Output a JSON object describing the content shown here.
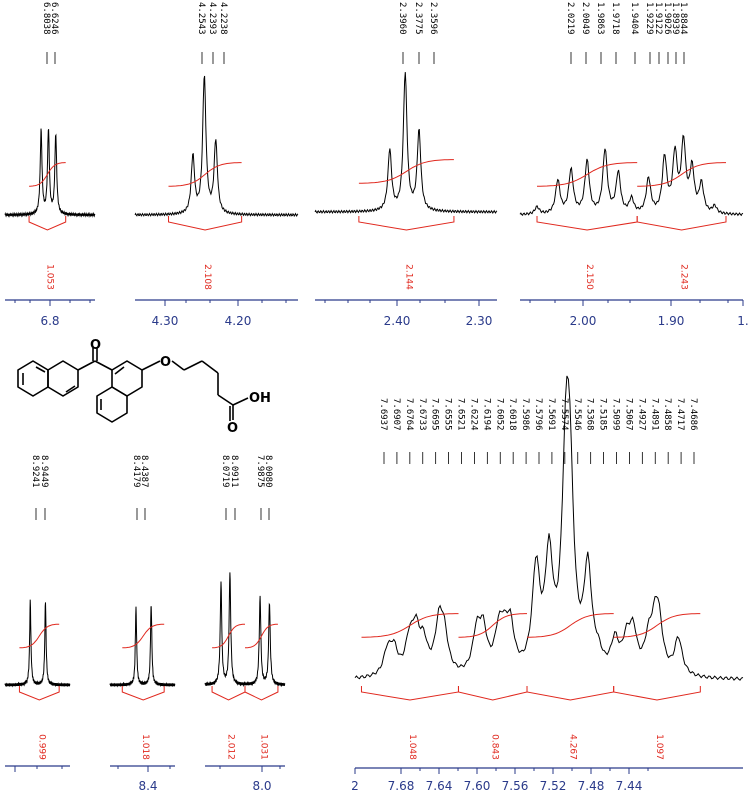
{
  "chart_data": [
    {
      "type": "line",
      "panel": "A",
      "x_axis_reversed": true,
      "xlim": [
        6.886,
        6.714
      ],
      "tick_labels": [
        "6.8"
      ],
      "peak_labels": [
        "6.8038",
        "6.6246"
      ],
      "peaks": [
        {
          "ppm": 6.817,
          "h": 0.58
        },
        {
          "ppm": 6.803,
          "h": 0.58
        },
        {
          "ppm": 6.789,
          "h": 0.55
        }
      ],
      "integrals": [
        {
          "from": 6.84,
          "to": 6.77,
          "value": "1.053"
        }
      ]
    },
    {
      "type": "line",
      "panel": "B",
      "x_axis_reversed": true,
      "xlim": [
        4.33,
        4.116
      ],
      "tick_labels": [
        "4.30",
        "4.20"
      ],
      "peak_labels": [
        "4.2543",
        "4.2393",
        "4.2238"
      ],
      "peaks": [
        {
          "ppm": 4.254,
          "h": 0.4
        },
        {
          "ppm": 4.239,
          "h": 0.95
        },
        {
          "ppm": 4.224,
          "h": 0.5
        }
      ],
      "integrals": [
        {
          "from": 4.286,
          "to": 4.19,
          "value": "2.108"
        }
      ]
    },
    {
      "type": "line",
      "panel": "C",
      "x_axis_reversed": true,
      "xlim": [
        2.488,
        2.264
      ],
      "tick_labels": [
        "2.40",
        "2.30"
      ],
      "peak_labels": [
        "2.3960",
        "2.3775",
        "2.3596"
      ],
      "peaks": [
        {
          "ppm": 2.396,
          "h": 0.42
        },
        {
          "ppm": 2.377,
          "h": 0.95
        },
        {
          "ppm": 2.36,
          "h": 0.55
        }
      ],
      "integrals": [
        {
          "from": 2.434,
          "to": 2.317,
          "value": "2.144"
        }
      ]
    },
    {
      "type": "line",
      "panel": "D",
      "x_axis_reversed": true,
      "xlim": [
        2.076,
        1.84
      ],
      "tick_labels": [
        "2.00",
        "1.90",
        "1."
      ],
      "peak_labels": [
        "2.0219",
        "2.0049",
        "1.9863",
        "1.9718",
        "1.9404",
        "1.9229",
        "1.9122",
        "1.9026",
        "1.8939",
        "1.8844"
      ],
      "peaks": [
        {
          "ppm": 2.058,
          "h": 0.05
        },
        {
          "ppm": 2.036,
          "h": 0.23
        },
        {
          "ppm": 2.022,
          "h": 0.3
        },
        {
          "ppm": 2.005,
          "h": 0.36
        },
        {
          "ppm": 1.986,
          "h": 0.44
        },
        {
          "ppm": 1.972,
          "h": 0.28
        },
        {
          "ppm": 1.958,
          "h": 0.1
        },
        {
          "ppm": 1.94,
          "h": 0.24
        },
        {
          "ppm": 1.923,
          "h": 0.38
        },
        {
          "ppm": 1.912,
          "h": 0.4
        },
        {
          "ppm": 1.903,
          "h": 0.48
        },
        {
          "ppm": 1.894,
          "h": 0.3
        },
        {
          "ppm": 1.884,
          "h": 0.2
        },
        {
          "ppm": 1.87,
          "h": 0.05
        }
      ],
      "integrals": [
        {
          "from": 2.058,
          "to": 1.952,
          "value": "2.150"
        },
        {
          "from": 1.952,
          "to": 1.858,
          "value": "2.243"
        }
      ]
    },
    {
      "type": "line",
      "panel": "E",
      "x_axis_reversed": true,
      "xlim": [
        8.98,
        7.95
      ],
      "tick_labels": [
        "8.4",
        "8.0"
      ],
      "peak_labels": [
        "8.9241",
        "8.9449",
        "8.4179",
        "8.4387",
        "8.0719",
        "8.0911",
        "7.9875",
        "8.0080"
      ],
      "peaks": [
        {
          "ppm": 8.945,
          "h": 0.48
        },
        {
          "ppm": 8.924,
          "h": 0.48
        },
        {
          "ppm": 8.439,
          "h": 0.44
        },
        {
          "ppm": 8.418,
          "h": 0.46
        },
        {
          "ppm": 8.091,
          "h": 0.58
        },
        {
          "ppm": 8.072,
          "h": 0.64
        },
        {
          "ppm": 8.008,
          "h": 0.5
        },
        {
          "ppm": 7.988,
          "h": 0.47
        }
      ],
      "integrals": [
        {
          "from": 8.96,
          "to": 8.905,
          "value": "0.999"
        },
        {
          "from": 8.458,
          "to": 8.4,
          "value": "1.018"
        },
        {
          "from": 8.11,
          "to": 8.04,
          "value": "2.012"
        },
        {
          "from": 8.04,
          "to": 7.97,
          "value": "1.031"
        }
      ]
    },
    {
      "type": "line",
      "panel": "F",
      "x_axis_reversed": true,
      "xlim": [
        7.72,
        7.42
      ],
      "tick_labels": [
        "2",
        "7.68",
        "7.64",
        "7.60",
        "7.56",
        "7.52",
        "7.48",
        "7.44"
      ],
      "peak_labels": [
        "7.6937",
        "7.6907",
        "7.6764",
        "7.6733",
        "7.6695",
        "7.6555",
        "7.6521",
        "7.6224",
        "7.6194",
        "7.6052",
        "7.6018",
        "7.5986",
        "7.5796",
        "7.5691",
        "7.5574",
        "7.5546",
        "7.5368",
        "7.5185",
        "7.5099",
        "7.5067",
        "7.4927",
        "7.4891",
        "7.4858",
        "7.4717",
        "7.4686"
      ],
      "peaks": [
        {
          "ppm": 7.695,
          "h": 0.12
        },
        {
          "ppm": 7.69,
          "h": 0.13
        },
        {
          "ppm": 7.678,
          "h": 0.16
        },
        {
          "ppm": 7.673,
          "h": 0.21
        },
        {
          "ppm": 7.667,
          "h": 0.15
        },
        {
          "ppm": 7.655,
          "h": 0.25
        },
        {
          "ppm": 7.651,
          "h": 0.18
        },
        {
          "ppm": 7.626,
          "h": 0.2
        },
        {
          "ppm": 7.621,
          "h": 0.21
        },
        {
          "ppm": 7.609,
          "h": 0.18
        },
        {
          "ppm": 7.605,
          "h": 0.15
        },
        {
          "ppm": 7.6,
          "h": 0.23
        },
        {
          "ppm": 7.58,
          "h": 0.52
        },
        {
          "ppm": 7.57,
          "h": 0.56
        },
        {
          "ppm": 7.557,
          "h": 0.9
        },
        {
          "ppm": 7.554,
          "h": 0.84
        },
        {
          "ppm": 7.54,
          "h": 0.52
        },
        {
          "ppm": 7.532,
          "h": 0.07
        },
        {
          "ppm": 7.519,
          "h": 0.16
        },
        {
          "ppm": 7.51,
          "h": 0.15
        },
        {
          "ppm": 7.505,
          "h": 0.2
        },
        {
          "ppm": 7.493,
          "h": 0.15
        },
        {
          "ppm": 7.488,
          "h": 0.21
        },
        {
          "ppm": 7.485,
          "h": 0.22
        },
        {
          "ppm": 7.47,
          "h": 0.19
        }
      ],
      "integrals": [
        {
          "from": 7.715,
          "to": 7.64,
          "value": "1.048"
        },
        {
          "from": 7.64,
          "to": 7.587,
          "value": "0.843"
        },
        {
          "from": 7.587,
          "to": 7.52,
          "value": "4.267"
        },
        {
          "from": 7.52,
          "to": 7.453,
          "value": "1.097"
        }
      ]
    }
  ],
  "structure": {
    "o_label": "O",
    "oh_label": "OH"
  },
  "colors": {
    "spectrum": "#000000",
    "integral": "#e0281e",
    "axis": "#2a3a8a",
    "peak_label": "#000000"
  }
}
